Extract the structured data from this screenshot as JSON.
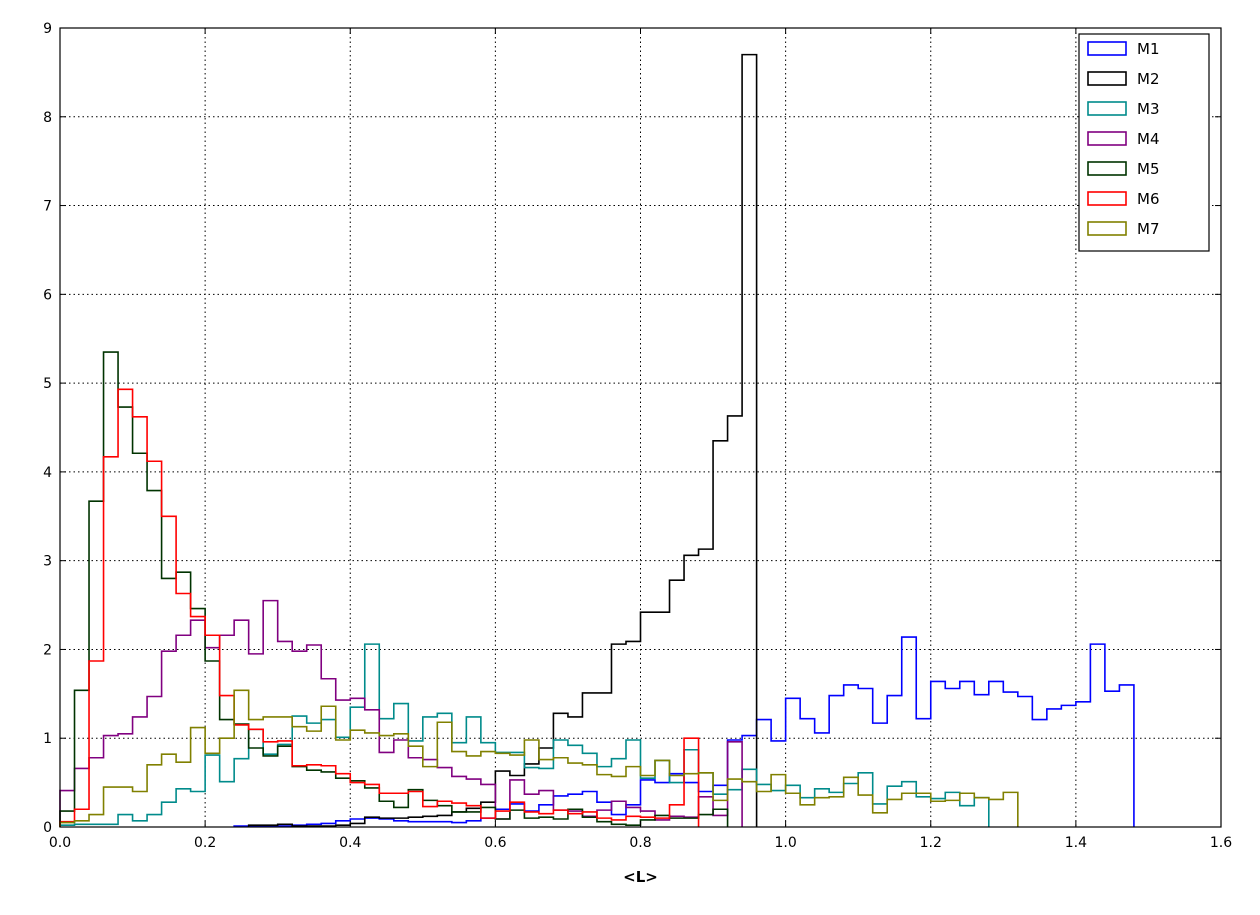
{
  "chart_data": {
    "type": "histogram-step",
    "xlabel": "<L>",
    "ylabel": "",
    "xlim": [
      0,
      1.6
    ],
    "ylim": [
      0,
      9
    ],
    "xticks": [
      "0.0",
      "0.2",
      "0.4",
      "0.6",
      "0.8",
      "1.0",
      "1.2",
      "1.4",
      "1.6"
    ],
    "yticks": [
      "0",
      "1",
      "2",
      "3",
      "4",
      "5",
      "6",
      "7",
      "8",
      "9"
    ],
    "grid": true,
    "legend_position": "top-right",
    "series": [
      {
        "name": "M1",
        "color": "#0000ff",
        "x_start": 0.24,
        "bin_width": 0.02,
        "values": [
          0.01,
          0.01,
          0.01,
          0.01,
          0.02,
          0.03,
          0.04,
          0.07,
          0.09,
          0.1,
          0.09,
          0.07,
          0.06,
          0.06,
          0.06,
          0.05,
          0.07,
          0.1,
          0.2,
          0.26,
          0.18,
          0.25,
          0.35,
          0.37,
          0.4,
          0.28,
          0.14,
          0.25,
          0.53,
          0.5,
          0.6,
          0.5,
          0.4,
          0.47,
          0.98,
          1.03,
          1.21,
          0.97,
          1.45,
          1.22,
          1.06,
          1.48,
          1.6,
          1.56,
          1.17,
          1.48,
          2.14,
          1.22,
          1.64,
          1.56,
          1.64,
          1.49,
          1.64,
          1.52,
          1.47,
          1.21,
          1.33,
          1.37,
          1.41,
          2.06,
          1.53,
          1.6
        ]
      },
      {
        "name": "M2",
        "color": "#000000",
        "x_start": 0.26,
        "bin_width": 0.02,
        "values": [
          0.02,
          0.02,
          0.03,
          0.01,
          0.01,
          0.01,
          0.02,
          0.04,
          0.11,
          0.1,
          0.1,
          0.11,
          0.12,
          0.13,
          0.17,
          0.21,
          0.28,
          0.63,
          0.58,
          0.71,
          0.89,
          1.28,
          1.24,
          1.51,
          1.51,
          2.06,
          2.09,
          2.42,
          2.42,
          2.78,
          3.06,
          3.13,
          4.35,
          4.63,
          8.7
        ]
      },
      {
        "name": "M3",
        "color": "#008b8b",
        "x_start": 0.0,
        "bin_width": 0.02,
        "values": [
          0.02,
          0.03,
          0.03,
          0.03,
          0.14,
          0.07,
          0.14,
          0.28,
          0.43,
          0.4,
          0.81,
          0.51,
          0.77,
          1.1,
          0.82,
          0.93,
          1.25,
          1.17,
          1.21,
          1.01,
          1.35,
          2.06,
          1.22,
          1.39,
          0.97,
          1.24,
          1.28,
          0.95,
          1.24,
          0.95,
          0.84,
          0.84,
          0.67,
          0.66,
          0.98,
          0.92,
          0.83,
          0.68,
          0.77,
          0.98,
          0.55,
          0.75,
          0.5,
          0.87,
          0.61,
          0.37,
          0.42,
          0.65,
          0.48,
          0.41,
          0.47,
          0.33,
          0.43,
          0.39,
          0.49,
          0.61,
          0.26,
          0.46,
          0.51,
          0.34,
          0.32,
          0.39,
          0.24,
          0.33
        ]
      },
      {
        "name": "M4",
        "color": "#800080",
        "x_start": 0.0,
        "bin_width": 0.02,
        "values": [
          0.41,
          0.66,
          0.78,
          1.03,
          1.05,
          1.24,
          1.47,
          1.98,
          2.16,
          2.33,
          2.02,
          2.16,
          2.33,
          1.95,
          2.55,
          2.09,
          1.98,
          2.05,
          1.67,
          1.43,
          1.45,
          1.32,
          0.84,
          0.98,
          0.78,
          0.76,
          0.67,
          0.57,
          0.54,
          0.48,
          0.09,
          0.53,
          0.37,
          0.41,
          0.19,
          0.18,
          0.12,
          0.19,
          0.29,
          0.22,
          0.18,
          0.08,
          0.12,
          0.11,
          0.34,
          0.13,
          0.96
        ]
      },
      {
        "name": "M5",
        "color": "#003300",
        "x_start": 0.0,
        "bin_width": 0.02,
        "values": [
          0.18,
          1.54,
          3.67,
          5.35,
          4.73,
          4.21,
          3.79,
          2.8,
          2.87,
          2.46,
          1.87,
          1.21,
          1.16,
          0.89,
          0.8,
          0.91,
          0.68,
          0.64,
          0.62,
          0.55,
          0.52,
          0.44,
          0.29,
          0.22,
          0.42,
          0.3,
          0.24,
          0.17,
          0.17,
          0.22,
          0.09,
          0.19,
          0.1,
          0.11,
          0.09,
          0.2,
          0.11,
          0.06,
          0.03,
          0.02,
          0.08,
          0.13,
          0.1,
          0.1,
          0.14,
          0.2
        ]
      },
      {
        "name": "M6",
        "color": "#ff0000",
        "x_start": 0.0,
        "bin_width": 0.02,
        "values": [
          0.06,
          0.2,
          1.87,
          4.17,
          4.93,
          4.62,
          4.12,
          3.5,
          2.63,
          2.37,
          2.16,
          1.48,
          1.15,
          1.1,
          0.96,
          0.97,
          0.69,
          0.7,
          0.69,
          0.6,
          0.5,
          0.48,
          0.38,
          0.38,
          0.4,
          0.23,
          0.29,
          0.27,
          0.24,
          0.1,
          0.18,
          0.28,
          0.17,
          0.15,
          0.19,
          0.15,
          0.17,
          0.1,
          0.08,
          0.12,
          0.11,
          0.1,
          0.25,
          1.0
        ]
      },
      {
        "name": "M7",
        "color": "#808000",
        "x_start": 0.0,
        "bin_width": 0.02,
        "values": [
          0.05,
          0.07,
          0.14,
          0.45,
          0.45,
          0.4,
          0.7,
          0.82,
          0.73,
          1.12,
          0.83,
          1.0,
          1.54,
          1.21,
          1.24,
          1.24,
          1.13,
          1.08,
          1.36,
          0.98,
          1.09,
          1.06,
          1.03,
          1.05,
          0.91,
          0.68,
          1.18,
          0.85,
          0.8,
          0.85,
          0.83,
          0.81,
          0.98,
          0.76,
          0.78,
          0.72,
          0.7,
          0.59,
          0.57,
          0.68,
          0.58,
          0.75,
          0.58,
          0.6,
          0.61,
          0.3,
          0.54,
          0.51,
          0.4,
          0.59,
          0.38,
          0.25,
          0.33,
          0.34,
          0.56,
          0.36,
          0.16,
          0.31,
          0.38,
          0.38,
          0.29,
          0.3,
          0.38,
          0.33,
          0.31,
          0.39
        ]
      }
    ]
  }
}
